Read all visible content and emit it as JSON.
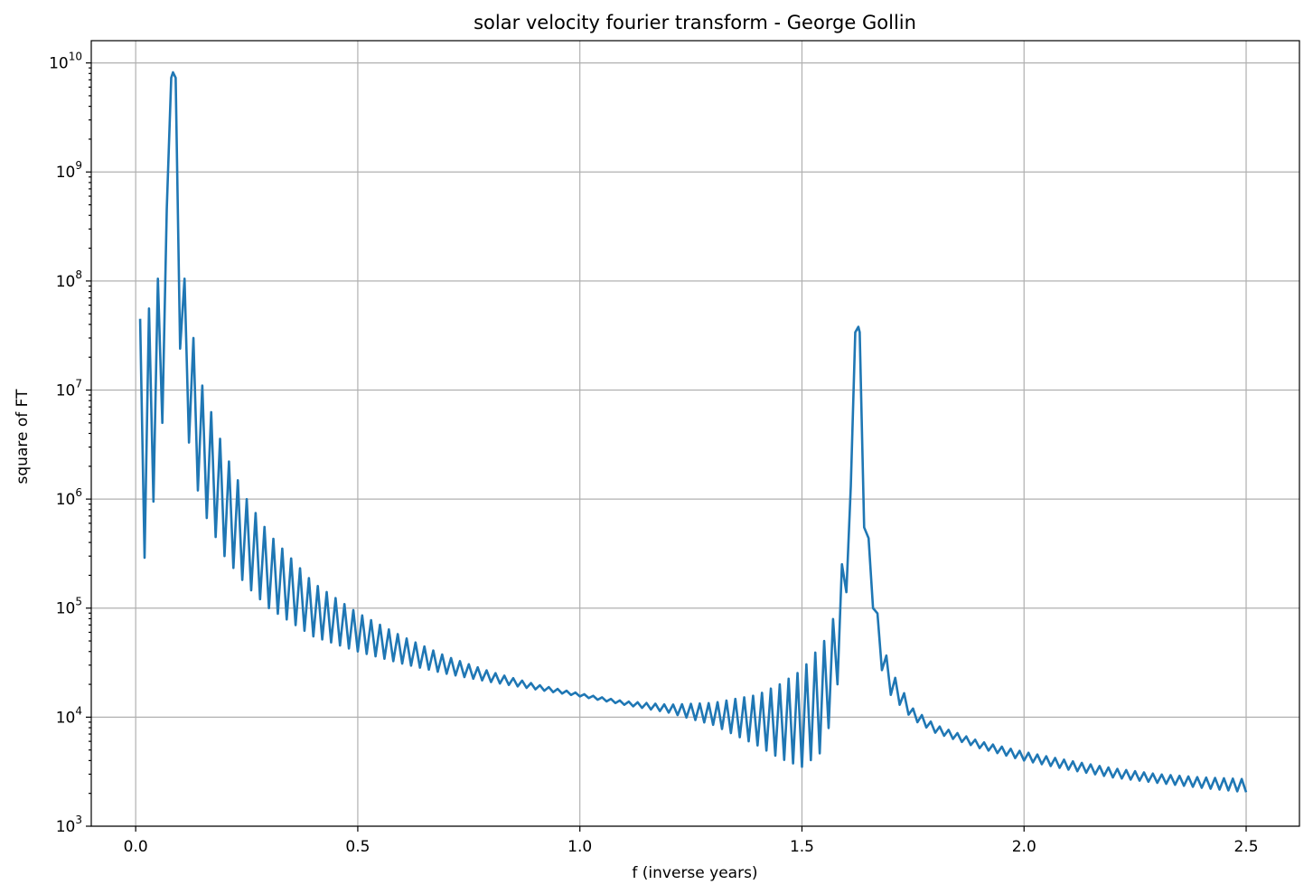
{
  "chart_data": {
    "type": "line",
    "title": "solar velocity fourier transform - George Gollin",
    "xlabel": "f (inverse years)",
    "ylabel": "square of FT",
    "xlim": [
      -0.1,
      2.62
    ],
    "ylim": [
      1000,
      16000000000
    ],
    "yscale": "log",
    "grid": true,
    "line_color": "#1f77b4",
    "xticks": [
      {
        "value": 0.0,
        "label": "0.0"
      },
      {
        "value": 0.5,
        "label": "0.5"
      },
      {
        "value": 1.0,
        "label": "1.0"
      },
      {
        "value": 1.5,
        "label": "1.5"
      },
      {
        "value": 2.0,
        "label": "2.0"
      },
      {
        "value": 2.5,
        "label": "2.5"
      }
    ],
    "yticks": [
      {
        "value": 1000,
        "base": "10",
        "exp": "3"
      },
      {
        "value": 10000,
        "base": "10",
        "exp": "4"
      },
      {
        "value": 100000,
        "base": "10",
        "exp": "5"
      },
      {
        "value": 1000000,
        "base": "10",
        "exp": "6"
      },
      {
        "value": 10000000,
        "base": "10",
        "exp": "7"
      },
      {
        "value": 100000000,
        "base": "10",
        "exp": "8"
      },
      {
        "value": 1000000000,
        "base": "10",
        "exp": "9"
      },
      {
        "value": 10000000000,
        "base": "10",
        "exp": "10"
      }
    ],
    "series": [
      {
        "f_start": 0.01,
        "f_end": 2.5,
        "f_step": 0.01,
        "peaks": [
          {
            "f": 0.084,
            "value": 8200000000
          },
          {
            "f": 1.627,
            "value": 38000000
          }
        ],
        "envelope_upper": [
          [
            0.01,
            45000000
          ],
          [
            0.02,
            50000000
          ],
          [
            0.03,
            56000000
          ],
          [
            0.04,
            70000000
          ],
          [
            0.05,
            105000000
          ],
          [
            0.06,
            185000000
          ],
          [
            0.07,
            460000000
          ],
          [
            0.084,
            8200000000
          ],
          [
            0.1,
            290000000
          ],
          [
            0.11,
            105000000
          ],
          [
            0.12,
            52000000
          ],
          [
            0.13,
            30000000
          ],
          [
            0.14,
            18000000
          ],
          [
            0.15,
            11000000
          ],
          [
            0.2,
            2700000
          ],
          [
            0.25,
            1000000
          ],
          [
            0.3,
            480000
          ],
          [
            0.4,
            170000
          ],
          [
            0.5,
            90000
          ],
          [
            0.6,
            55000
          ],
          [
            0.7,
            36000
          ],
          [
            0.8,
            26000
          ],
          [
            0.9,
            20000
          ],
          [
            1.0,
            16500
          ],
          [
            1.1,
            14000
          ],
          [
            1.2,
            13000
          ],
          [
            1.3,
            13500
          ],
          [
            1.4,
            16000
          ],
          [
            1.45,
            20000
          ],
          [
            1.5,
            27000
          ],
          [
            1.55,
            50000
          ],
          [
            1.58,
            100000
          ],
          [
            1.6,
            640000
          ],
          [
            1.615,
            1900000
          ],
          [
            1.627,
            38000000
          ],
          [
            1.64,
            1200000
          ],
          [
            1.66,
            160000
          ],
          [
            1.68,
            50000
          ],
          [
            1.7,
            27000
          ],
          [
            1.75,
            12000
          ],
          [
            1.8,
            8500
          ],
          [
            1.9,
            6000
          ],
          [
            2.0,
            4800
          ],
          [
            2.1,
            4000
          ],
          [
            2.2,
            3400
          ],
          [
            2.3,
            3000
          ],
          [
            2.4,
            2800
          ],
          [
            2.5,
            2700
          ]
        ],
        "envelope_lower": [
          [
            0.01,
            170000
          ],
          [
            0.02,
            290000
          ],
          [
            0.03,
            510000
          ],
          [
            0.04,
            950000
          ],
          [
            0.05,
            2000000
          ],
          [
            0.06,
            5000000
          ],
          [
            0.07,
            25000000
          ],
          [
            0.084,
            3800000000
          ],
          [
            0.1,
            24000000
          ],
          [
            0.11,
            7000000
          ],
          [
            0.12,
            3300000
          ],
          [
            0.13,
            1900000
          ],
          [
            0.14,
            1200000
          ],
          [
            0.15,
            820000
          ],
          [
            0.2,
            300000
          ],
          [
            0.25,
            160000
          ],
          [
            0.3,
            100000
          ],
          [
            0.4,
            55000
          ],
          [
            0.5,
            40000
          ],
          [
            0.6,
            31000
          ],
          [
            0.7,
            25000
          ],
          [
            0.8,
            21000
          ],
          [
            0.9,
            18000
          ],
          [
            1.0,
            15500
          ],
          [
            1.1,
            13000
          ],
          [
            1.2,
            11000
          ],
          [
            1.3,
            8500
          ],
          [
            1.4,
            5500
          ],
          [
            1.45,
            4200
          ],
          [
            1.5,
            3500
          ],
          [
            1.55,
            5000
          ],
          [
            1.58,
            20000
          ],
          [
            1.6,
            140000
          ],
          [
            1.615,
            700000
          ],
          [
            1.627,
            24000000
          ],
          [
            1.64,
            550000
          ],
          [
            1.66,
            100000
          ],
          [
            1.68,
            27000
          ],
          [
            1.7,
            16000
          ],
          [
            1.75,
            9500
          ],
          [
            1.8,
            7200
          ],
          [
            1.9,
            5200
          ],
          [
            2.0,
            4000
          ],
          [
            2.1,
            3300
          ],
          [
            2.2,
            2800
          ],
          [
            2.3,
            2500
          ],
          [
            2.4,
            2250
          ],
          [
            2.5,
            2050
          ]
        ]
      }
    ]
  }
}
